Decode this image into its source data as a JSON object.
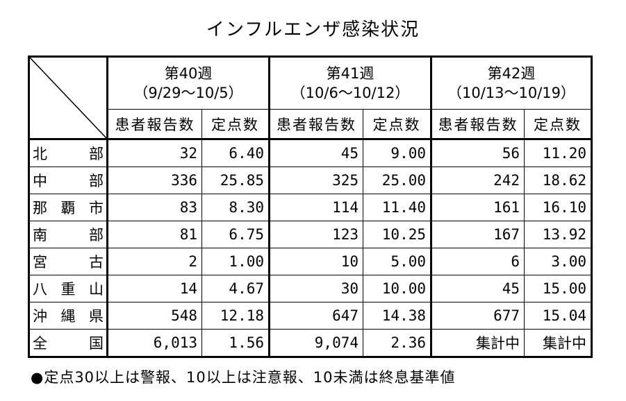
{
  "title": "インフルエンザ感染状況",
  "weeks": [
    {
      "label": "第40週",
      "range": "（9/29～10/5）"
    },
    {
      "label": "第41週",
      "range": "（10/6～10/12）"
    },
    {
      "label": "第42週",
      "range": "（10/13～10/19）"
    }
  ],
  "sub_headers": {
    "patients": "患者報告数",
    "per_point": "定点数"
  },
  "rows": [
    {
      "region": [
        "北",
        "部"
      ],
      "w40": [
        "32",
        "6.40"
      ],
      "w41": [
        "45",
        "9.00"
      ],
      "w42": [
        "56",
        "11.20"
      ]
    },
    {
      "region": [
        "中",
        "部"
      ],
      "w40": [
        "336",
        "25.85"
      ],
      "w41": [
        "325",
        "25.00"
      ],
      "w42": [
        "242",
        "18.62"
      ]
    },
    {
      "region": [
        "那",
        "覇",
        "市"
      ],
      "w40": [
        "83",
        "8.30"
      ],
      "w41": [
        "114",
        "11.40"
      ],
      "w42": [
        "161",
        "16.10"
      ]
    },
    {
      "region": [
        "南",
        "部"
      ],
      "w40": [
        "81",
        "6.75"
      ],
      "w41": [
        "123",
        "10.25"
      ],
      "w42": [
        "167",
        "13.92"
      ]
    },
    {
      "region": [
        "宮",
        "古"
      ],
      "w40": [
        "2",
        "1.00"
      ],
      "w41": [
        "10",
        "5.00"
      ],
      "w42": [
        "6",
        "3.00"
      ]
    },
    {
      "region": [
        "八",
        "重",
        "山"
      ],
      "w40": [
        "14",
        "4.67"
      ],
      "w41": [
        "30",
        "10.00"
      ],
      "w42": [
        "45",
        "15.00"
      ]
    },
    {
      "region": [
        "沖",
        "縄",
        "県"
      ],
      "w40": [
        "548",
        "12.18"
      ],
      "w41": [
        "647",
        "14.38"
      ],
      "w42": [
        "677",
        "15.04"
      ]
    },
    {
      "region": [
        "全",
        "国"
      ],
      "w40": [
        "6,013",
        "1.56"
      ],
      "w41": [
        "9,074",
        "2.36"
      ],
      "w42": [
        "集計中",
        "集計中"
      ]
    }
  ],
  "note": "●定点30以上は警報、10以上は注意報、10未満は終息基準値"
}
